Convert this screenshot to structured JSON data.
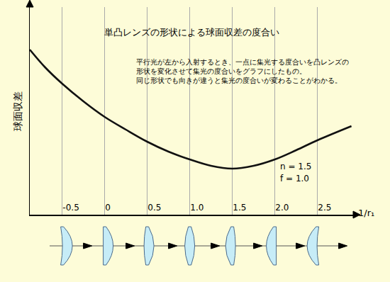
{
  "chart_data": {
    "type": "line",
    "title": "単凸レンズの形状による球面収差の度合い",
    "description": [
      "平行光が左から入射するとき、一点に集光する度合いを凸レンズの",
      "形状を変化させて集光の度合いをグラフにしたもの。",
      "同じ形状でも向きが違うと集光の度合いが変わることがわかる。"
    ],
    "annotations": [
      "n = 1.5",
      "f = 1.0"
    ],
    "y_label": "球面収差",
    "x_label": "1/r₁",
    "x": [
      -0.88,
      -0.7,
      -0.5,
      -0.25,
      0,
      0.25,
      0.5,
      0.75,
      1.0,
      1.25,
      1.5,
      1.75,
      2.0,
      2.25,
      2.5,
      2.9
    ],
    "values": [
      233,
      208,
      185,
      160,
      138,
      120,
      103,
      89,
      78,
      69,
      65,
      69,
      78,
      91,
      105,
      125
    ],
    "color": "#111111",
    "xlim": [
      -0.88,
      2.92
    ],
    "xticks": [
      -0.5,
      0,
      0.5,
      {
        "value": 1,
        "label": "1.0"
      },
      1.5,
      {
        "value": 2,
        "label": "2.0"
      },
      2.5
    ],
    "ylim": [
      0,
      293
    ],
    "yticks": [],
    "grid": true,
    "tick_labels": "x"
  }
}
